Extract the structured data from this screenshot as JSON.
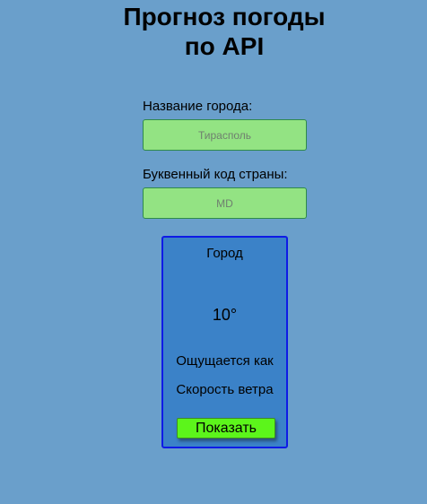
{
  "header": {
    "title_line1": "Прогноз погоды",
    "title_line2": "по API"
  },
  "form": {
    "city_label": "Название города:",
    "city_placeholder": "Тирасполь",
    "city_value": "",
    "country_label": "Буквенный код страны:",
    "country_placeholder": "MD",
    "country_value": ""
  },
  "weather_card": {
    "city": "Город",
    "temperature": "10°",
    "feels_like": "Ощущается как",
    "wind_speed": "Скорость ветра",
    "show_button_label": "Показать"
  },
  "colors": {
    "background": "#6a9fcb",
    "input_fill": "#93e383",
    "card_fill": "#3b82c8",
    "card_border": "#0e1be6",
    "button_fill": "#5cf51b"
  }
}
